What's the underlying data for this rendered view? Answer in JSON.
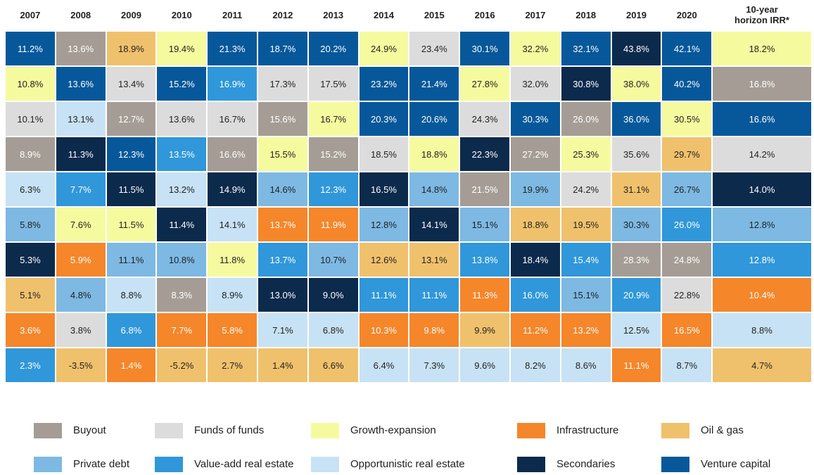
{
  "columns": [
    "2007",
    "2008",
    "2009",
    "2010",
    "2011",
    "2012",
    "2013",
    "2014",
    "2015",
    "2016",
    "2017",
    "2018",
    "2019",
    "2020",
    "10-year horizon IRR*"
  ],
  "strategies": [
    {
      "name": "Buyout",
      "color": "#a59d95",
      "dark": true
    },
    {
      "name": "Funds of funds",
      "color": "#dcdcdc",
      "dark": false
    },
    {
      "name": "Growth-expansion",
      "color": "#f6fa9e",
      "dark": false
    },
    {
      "name": "Infrastructure",
      "color": "#f5862a",
      "dark": true
    },
    {
      "name": "Oil & gas",
      "color": "#f0c16c",
      "dark": false
    },
    {
      "name": "Private debt",
      "color": "#7db9e3",
      "dark": false
    },
    {
      "name": "Value-add real estate",
      "color": "#3097da",
      "dark": true
    },
    {
      "name": "Opportunistic real estate",
      "color": "#c7e2f4",
      "dark": false
    },
    {
      "name": "Secondaries",
      "color": "#0c2a4c",
      "dark": true
    },
    {
      "name": "Venture capital",
      "color": "#07589a",
      "dark": true
    }
  ],
  "rows": [
    [
      [
        "11.2%",
        9
      ],
      [
        "13.6%",
        0
      ],
      [
        "18.9%",
        4
      ],
      [
        "19.4%",
        2
      ],
      [
        "21.3%",
        9
      ],
      [
        "18.7%",
        9
      ],
      [
        "20.2%",
        9
      ],
      [
        "24.9%",
        2
      ],
      [
        "23.4%",
        1
      ],
      [
        "30.1%",
        9
      ],
      [
        "32.2%",
        2
      ],
      [
        "32.1%",
        9
      ],
      [
        "43.8%",
        8
      ],
      [
        "42.1%",
        9
      ],
      [
        "18.2%",
        2
      ]
    ],
    [
      [
        "10.8%",
        2
      ],
      [
        "13.6%",
        9
      ],
      [
        "13.4%",
        1
      ],
      [
        "15.2%",
        9
      ],
      [
        "16.9%",
        6
      ],
      [
        "17.3%",
        1
      ],
      [
        "17.5%",
        1
      ],
      [
        "23.2%",
        9
      ],
      [
        "21.4%",
        9
      ],
      [
        "27.8%",
        2
      ],
      [
        "32.0%",
        1
      ],
      [
        "30.8%",
        8
      ],
      [
        "38.0%",
        2
      ],
      [
        "40.2%",
        9
      ],
      [
        "16.8%",
        0
      ]
    ],
    [
      [
        "10.1%",
        1
      ],
      [
        "13.1%",
        7
      ],
      [
        "12.7%",
        0
      ],
      [
        "13.6%",
        1
      ],
      [
        "16.7%",
        1
      ],
      [
        "15.6%",
        0
      ],
      [
        "16.7%",
        2
      ],
      [
        "20.3%",
        9
      ],
      [
        "20.6%",
        9
      ],
      [
        "24.3%",
        1
      ],
      [
        "30.3%",
        9
      ],
      [
        "26.0%",
        0
      ],
      [
        "36.0%",
        9
      ],
      [
        "30.5%",
        2
      ],
      [
        "16.6%",
        9
      ]
    ],
    [
      [
        "8.9%",
        0
      ],
      [
        "11.3%",
        8
      ],
      [
        "12.3%",
        9
      ],
      [
        "13.5%",
        6
      ],
      [
        "16.6%",
        0
      ],
      [
        "15.5%",
        2
      ],
      [
        "15.2%",
        0
      ],
      [
        "18.5%",
        1
      ],
      [
        "18.8%",
        2
      ],
      [
        "22.3%",
        8
      ],
      [
        "27.2%",
        0
      ],
      [
        "25.3%",
        2
      ],
      [
        "35.6%",
        1
      ],
      [
        "29.7%",
        4
      ],
      [
        "14.2%",
        1
      ]
    ],
    [
      [
        "6.3%",
        7
      ],
      [
        "7.7%",
        6
      ],
      [
        "11.5%",
        8
      ],
      [
        "13.2%",
        7
      ],
      [
        "14.9%",
        8
      ],
      [
        "14.6%",
        5
      ],
      [
        "12.3%",
        6
      ],
      [
        "16.5%",
        8
      ],
      [
        "14.8%",
        5
      ],
      [
        "21.5%",
        0
      ],
      [
        "19.9%",
        5
      ],
      [
        "24.2%",
        1
      ],
      [
        "31.1%",
        4
      ],
      [
        "26.7%",
        5
      ],
      [
        "14.0%",
        8
      ]
    ],
    [
      [
        "5.8%",
        5
      ],
      [
        "7.6%",
        2
      ],
      [
        "11.5%",
        2
      ],
      [
        "11.4%",
        8
      ],
      [
        "14.1%",
        7
      ],
      [
        "13.7%",
        3
      ],
      [
        "11.9%",
        3
      ],
      [
        "12.8%",
        5
      ],
      [
        "14.1%",
        8
      ],
      [
        "15.1%",
        5
      ],
      [
        "18.8%",
        4
      ],
      [
        "19.5%",
        4
      ],
      [
        "30.3%",
        5
      ],
      [
        "26.0%",
        6
      ],
      [
        "12.8%",
        5
      ]
    ],
    [
      [
        "5.3%",
        8
      ],
      [
        "5.9%",
        3
      ],
      [
        "11.1%",
        5
      ],
      [
        "10.8%",
        5
      ],
      [
        "11.8%",
        2
      ],
      [
        "13.7%",
        6
      ],
      [
        "10.7%",
        5
      ],
      [
        "12.6%",
        4
      ],
      [
        "13.1%",
        4
      ],
      [
        "13.8%",
        6
      ],
      [
        "18.4%",
        8
      ],
      [
        "15.4%",
        6
      ],
      [
        "28.3%",
        0
      ],
      [
        "24.8%",
        0
      ],
      [
        "12.8%",
        6
      ]
    ],
    [
      [
        "5.1%",
        4
      ],
      [
        "4.8%",
        5
      ],
      [
        "8.8%",
        7
      ],
      [
        "8.3%",
        0
      ],
      [
        "8.9%",
        7
      ],
      [
        "13.0%",
        8
      ],
      [
        "9.0%",
        8
      ],
      [
        "11.1%",
        6
      ],
      [
        "11.1%",
        6
      ],
      [
        "11.3%",
        3
      ],
      [
        "16.0%",
        6
      ],
      [
        "15.1%",
        5
      ],
      [
        "20.9%",
        6
      ],
      [
        "22.8%",
        1
      ],
      [
        "10.4%",
        3
      ]
    ],
    [
      [
        "3.6%",
        3
      ],
      [
        "3.8%",
        1
      ],
      [
        "6.8%",
        6
      ],
      [
        "7.7%",
        3
      ],
      [
        "5.8%",
        3
      ],
      [
        "7.1%",
        7
      ],
      [
        "6.8%",
        7
      ],
      [
        "10.3%",
        3
      ],
      [
        "9.8%",
        3
      ],
      [
        "9.9%",
        4
      ],
      [
        "11.2%",
        3
      ],
      [
        "13.2%",
        3
      ],
      [
        "12.5%",
        7
      ],
      [
        "16.5%",
        3
      ],
      [
        "8.8%",
        7
      ]
    ],
    [
      [
        "2.3%",
        6
      ],
      [
        "-3.5%",
        4
      ],
      [
        "1.4%",
        3
      ],
      [
        "-5.2%",
        4
      ],
      [
        "2.7%",
        4
      ],
      [
        "1.4%",
        4
      ],
      [
        "6.6%",
        4
      ],
      [
        "6.4%",
        7
      ],
      [
        "7.3%",
        7
      ],
      [
        "9.6%",
        7
      ],
      [
        "8.2%",
        7
      ],
      [
        "8.6%",
        7
      ],
      [
        "11.1%",
        3
      ],
      [
        "8.7%",
        7
      ],
      [
        "4.7%",
        4
      ]
    ]
  ]
}
